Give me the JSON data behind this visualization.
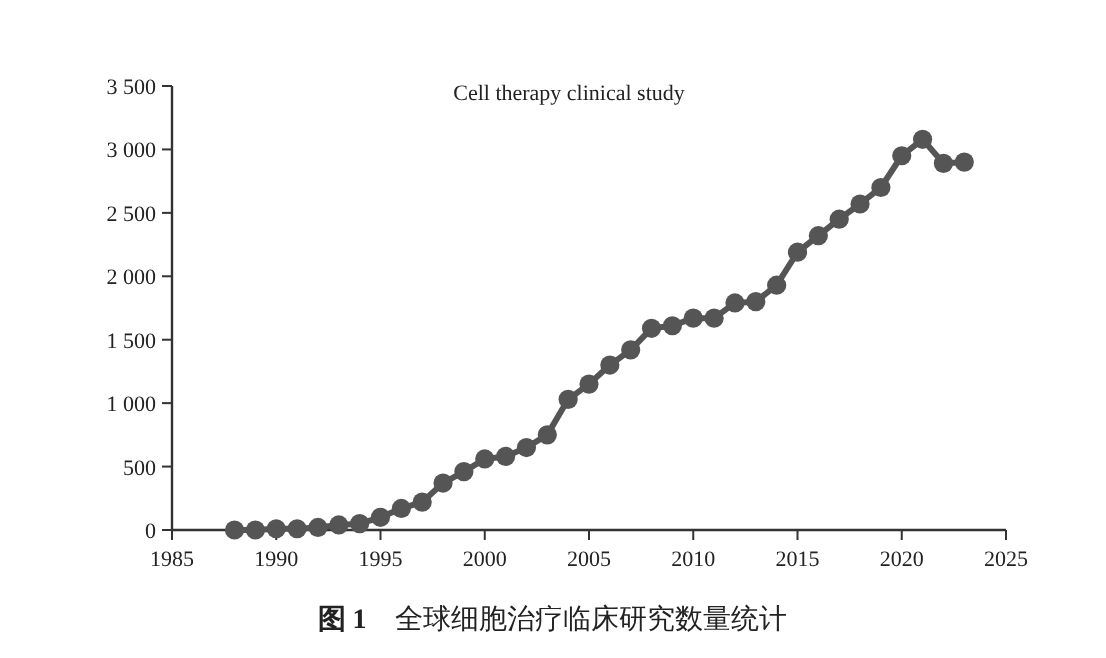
{
  "chart_data": {
    "type": "line",
    "title": "Cell therapy clinical study",
    "annotations": [
      "**图 1**　全球细胞治疗临床研究数量统计"
    ],
    "x": [
      1988,
      1989,
      1990,
      1991,
      1992,
      1993,
      1994,
      1995,
      1996,
      1997,
      1998,
      1999,
      2000,
      2001,
      2002,
      2003,
      2004,
      2005,
      2006,
      2007,
      2008,
      2009,
      2010,
      2011,
      2012,
      2013,
      2014,
      2015,
      2016,
      2017,
      2018,
      2019,
      2020,
      2021,
      2022,
      2023
    ],
    "series": [
      {
        "color": "#555555",
        "values": [
          0,
          0,
          10,
          10,
          20,
          40,
          50,
          100,
          170,
          220,
          370,
          460,
          560,
          580,
          650,
          750,
          1030,
          1150,
          1300,
          1420,
          1590,
          1610,
          1670,
          1670,
          1790,
          1800,
          1930,
          2190,
          2320,
          2450,
          2570,
          2700,
          2950,
          3080,
          2890,
          2900
        ]
      }
    ],
    "xlim": [
      1985,
      2025
    ],
    "xticks": [
      1985,
      1990,
      1995,
      2000,
      2005,
      2010,
      2015,
      2020,
      2025
    ],
    "ylim": [
      0,
      3500
    ],
    "yticks": [
      0,
      {
        "value": 500,
        "label": "500"
      },
      {
        "value": 1000,
        "label": "1 000"
      },
      {
        "value": 1500,
        "label": "1 500"
      },
      {
        "value": 2000,
        "label": "2 000"
      },
      {
        "value": 2500,
        "label": "2 500"
      },
      {
        "value": 3000,
        "label": "3 000"
      },
      {
        "value": 3500,
        "label": "3 500"
      }
    ],
    "marker": "circle",
    "line_style": "solid"
  }
}
